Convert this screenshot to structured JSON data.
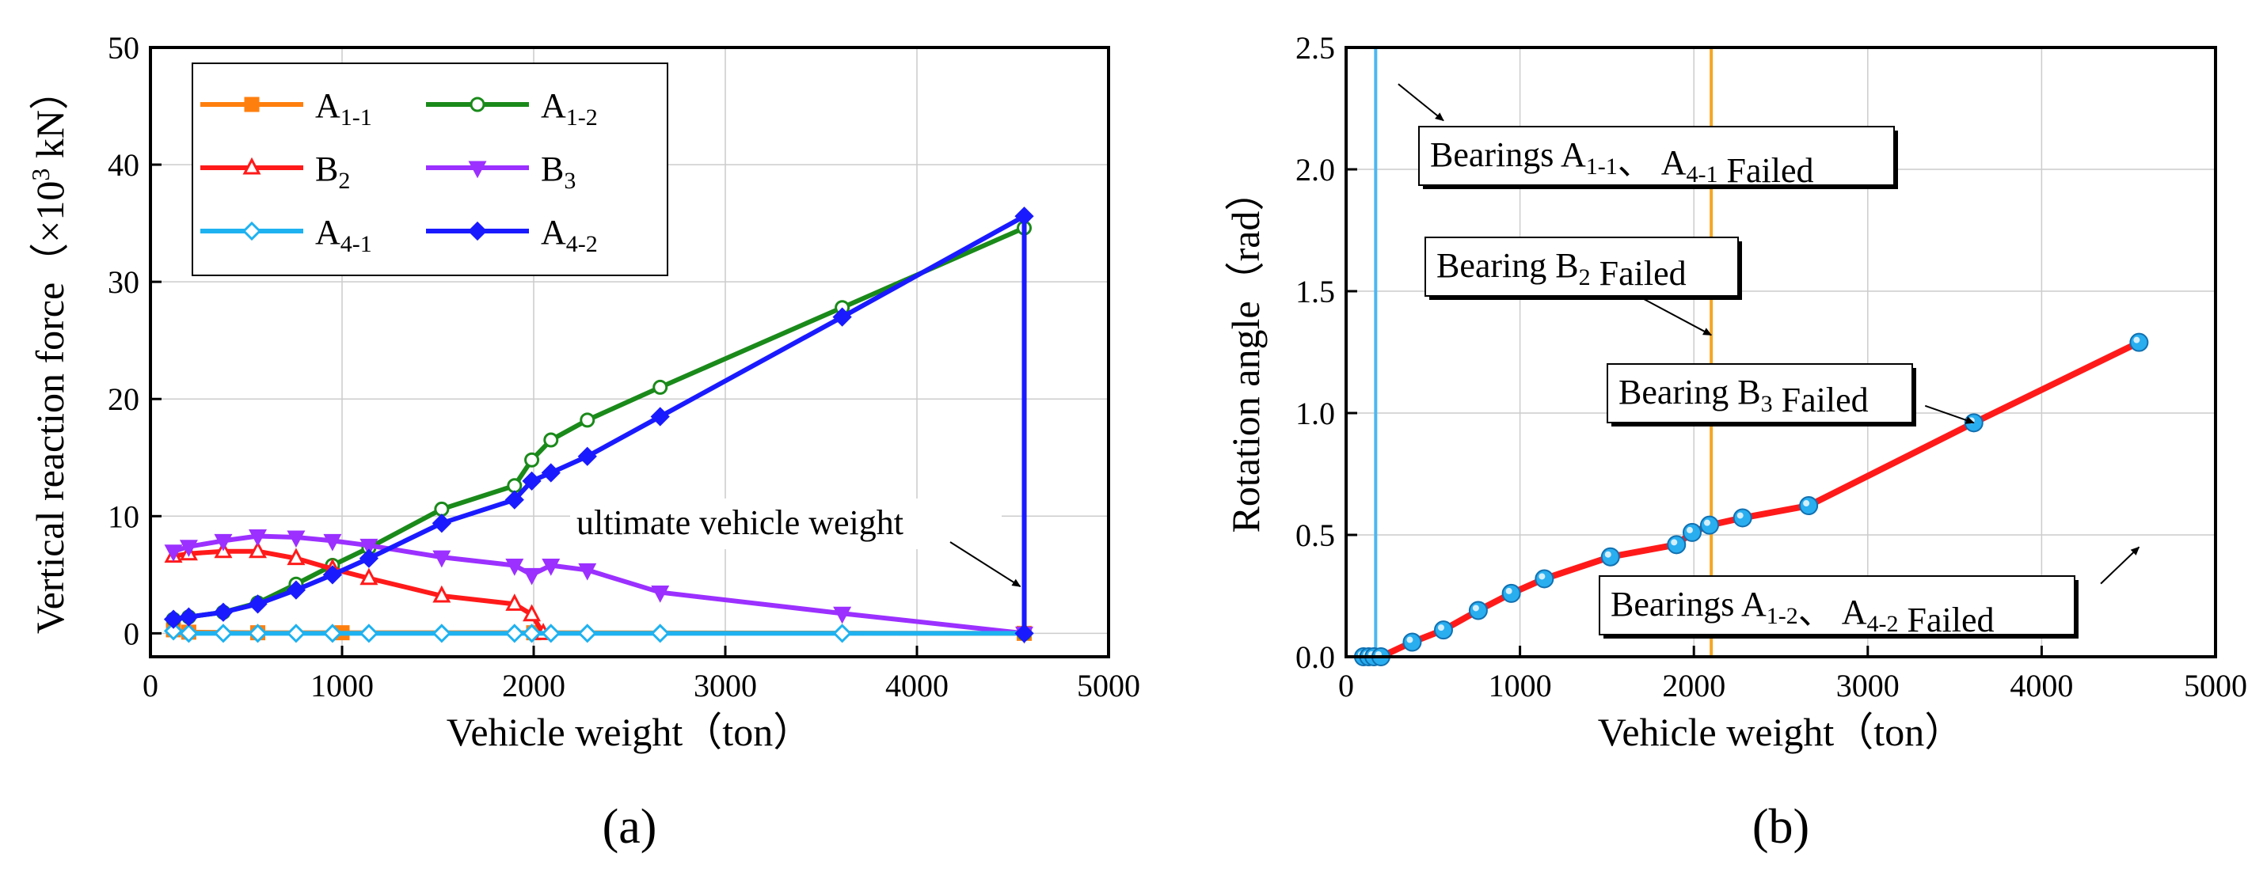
{
  "chart_data": [
    {
      "type": "line",
      "panel_label": "a",
      "xlabel": "Vehicle weight（ton）",
      "ylabel": "Vertical reaction force（×10³ kN）",
      "xlim": [
        0,
        5000
      ],
      "ylim": [
        -2,
        50
      ],
      "xticks": [
        0,
        1000,
        2000,
        3000,
        4000,
        5000
      ],
      "yticks": [
        0,
        10,
        20,
        30,
        40,
        50
      ],
      "grid": true,
      "legend_position": "top-left",
      "series": [
        {
          "name": "A1-1",
          "main": "A",
          "sub": "1-1",
          "color": "#ff7f0e",
          "marker": "square",
          "filled": true,
          "points": [
            [
              120,
              0.3
            ],
            [
              200,
              0.1
            ],
            [
              560,
              0.05
            ],
            [
              1000,
              0.05
            ],
            [
              2000,
              0.05
            ],
            [
              4560,
              0
            ]
          ]
        },
        {
          "name": "A1-2",
          "main": "A",
          "sub": "1-2",
          "color": "#1a8a1a",
          "marker": "circle",
          "filled": false,
          "points": [
            [
              120,
              1.2
            ],
            [
              200,
              1.4
            ],
            [
              380,
              1.8
            ],
            [
              560,
              2.6
            ],
            [
              760,
              4.2
            ],
            [
              950,
              5.8
            ],
            [
              1140,
              7.3
            ],
            [
              1520,
              10.6
            ],
            [
              1900,
              12.6
            ],
            [
              1990,
              14.8
            ],
            [
              2090,
              16.5
            ],
            [
              2280,
              18.2
            ],
            [
              2660,
              21.0
            ],
            [
              3610,
              27.8
            ],
            [
              4560,
              34.6
            ],
            [
              4560,
              0
            ]
          ]
        },
        {
          "name": "B2",
          "main": "B",
          "sub": "2",
          "color": "#ff1a1a",
          "marker": "triangle-up",
          "filled": false,
          "points": [
            [
              120,
              6.6
            ],
            [
              200,
              6.8
            ],
            [
              380,
              7.0
            ],
            [
              560,
              7.0
            ],
            [
              760,
              6.4
            ],
            [
              950,
              5.5
            ],
            [
              1140,
              4.7
            ],
            [
              1520,
              3.2
            ],
            [
              1900,
              2.5
            ],
            [
              1990,
              1.6
            ],
            [
              2050,
              0
            ]
          ]
        },
        {
          "name": "B3",
          "main": "B",
          "sub": "3",
          "color": "#9b30ff",
          "marker": "triangle-down",
          "filled": true,
          "points": [
            [
              120,
              7.0
            ],
            [
              200,
              7.4
            ],
            [
              380,
              7.9
            ],
            [
              560,
              8.3
            ],
            [
              760,
              8.2
            ],
            [
              950,
              7.9
            ],
            [
              1140,
              7.5
            ],
            [
              1520,
              6.5
            ],
            [
              1900,
              5.8
            ],
            [
              1990,
              5.0
            ],
            [
              2090,
              5.8
            ],
            [
              2280,
              5.4
            ],
            [
              2660,
              3.5
            ],
            [
              3610,
              1.7
            ],
            [
              4560,
              0
            ]
          ]
        },
        {
          "name": "A4-1",
          "main": "A",
          "sub": "4-1",
          "color": "#1fb2f0",
          "marker": "diamond",
          "filled": false,
          "points": [
            [
              120,
              0.2
            ],
            [
              200,
              0
            ],
            [
              380,
              0
            ],
            [
              560,
              0
            ],
            [
              760,
              0
            ],
            [
              950,
              0
            ],
            [
              1140,
              0
            ],
            [
              1520,
              0
            ],
            [
              1900,
              0
            ],
            [
              1990,
              0
            ],
            [
              2090,
              0
            ],
            [
              2280,
              0
            ],
            [
              2660,
              0
            ],
            [
              3610,
              0
            ],
            [
              4560,
              0
            ]
          ]
        },
        {
          "name": "A4-2",
          "main": "A",
          "sub": "4-2",
          "color": "#1a1aff",
          "marker": "diamond",
          "filled": true,
          "points": [
            [
              120,
              1.2
            ],
            [
              200,
              1.4
            ],
            [
              380,
              1.8
            ],
            [
              560,
              2.5
            ],
            [
              760,
              3.7
            ],
            [
              950,
              5.0
            ],
            [
              1140,
              6.4
            ],
            [
              1520,
              9.4
            ],
            [
              1900,
              11.4
            ],
            [
              1990,
              13.0
            ],
            [
              2090,
              13.7
            ],
            [
              2280,
              15.1
            ],
            [
              2660,
              18.5
            ],
            [
              3610,
              27.0
            ],
            [
              4560,
              35.6
            ],
            [
              4560,
              0
            ]
          ]
        }
      ],
      "annotations": [
        {
          "text": "ultimate vehicle weight",
          "arrow_to": [
            4560,
            4
          ]
        }
      ]
    },
    {
      "type": "line",
      "panel_label": "b",
      "xlabel": "Vehicle weight（ton）",
      "ylabel": "Rotation angle（rad）",
      "xlim": [
        0,
        5000
      ],
      "ylim": [
        0,
        2.5
      ],
      "xticks": [
        0,
        1000,
        2000,
        3000,
        4000,
        5000
      ],
      "yticks": [
        "0.0",
        "0.5",
        "1.0",
        "1.5",
        "2.0",
        "2.5"
      ],
      "grid": true,
      "series": [
        {
          "name": "Rotation angle",
          "color": "#ff1a1a",
          "marker_color": "#29aef0",
          "points": [
            [
              100,
              0
            ],
            [
              130,
              0
            ],
            [
              160,
              0
            ],
            [
              200,
              0
            ],
            [
              380,
              0.06
            ],
            [
              560,
              0.11
            ],
            [
              760,
              0.19
            ],
            [
              950,
              0.26
            ],
            [
              1140,
              0.32
            ],
            [
              1520,
              0.41
            ],
            [
              1900,
              0.46
            ],
            [
              1990,
              0.51
            ],
            [
              2090,
              0.54
            ],
            [
              2280,
              0.57
            ],
            [
              2660,
              0.62
            ],
            [
              3610,
              0.96
            ],
            [
              4560,
              1.29
            ]
          ]
        }
      ],
      "vlines": [
        {
          "x": 170,
          "color": "#4db8f0"
        },
        {
          "x": 2100,
          "color": "#f5a623"
        }
      ],
      "annotations": [
        {
          "parts": [
            [
              "Bearings A",
              ""
            ],
            [
              "1-1",
              "sub"
            ],
            [
              "、 A",
              ""
            ],
            [
              "4-1",
              "sub"
            ],
            [
              " Failed",
              ""
            ]
          ],
          "arrow_from": [
            300,
            2.35
          ],
          "arrow_to": [
            560,
            2.2
          ]
        },
        {
          "parts": [
            [
              "Bearing B",
              ""
            ],
            [
              "2",
              "sub"
            ],
            [
              " Failed",
              ""
            ]
          ],
          "arrow_from": [
            1680,
            1.48
          ],
          "arrow_to": [
            2100,
            1.32
          ]
        },
        {
          "parts": [
            [
              "Bearing B",
              ""
            ],
            [
              "3",
              "sub"
            ],
            [
              " Failed",
              ""
            ]
          ],
          "arrow_from": [
            3330,
            1.03
          ],
          "arrow_to": [
            3610,
            0.96
          ]
        },
        {
          "parts": [
            [
              "Bearings A",
              ""
            ],
            [
              "1-2",
              "sub"
            ],
            [
              "、 A",
              ""
            ],
            [
              "4-2",
              "sub"
            ],
            [
              " Failed",
              ""
            ]
          ],
          "arrow_from": [
            4340,
            0.3
          ],
          "arrow_to": [
            4560,
            0.45
          ]
        }
      ]
    }
  ]
}
